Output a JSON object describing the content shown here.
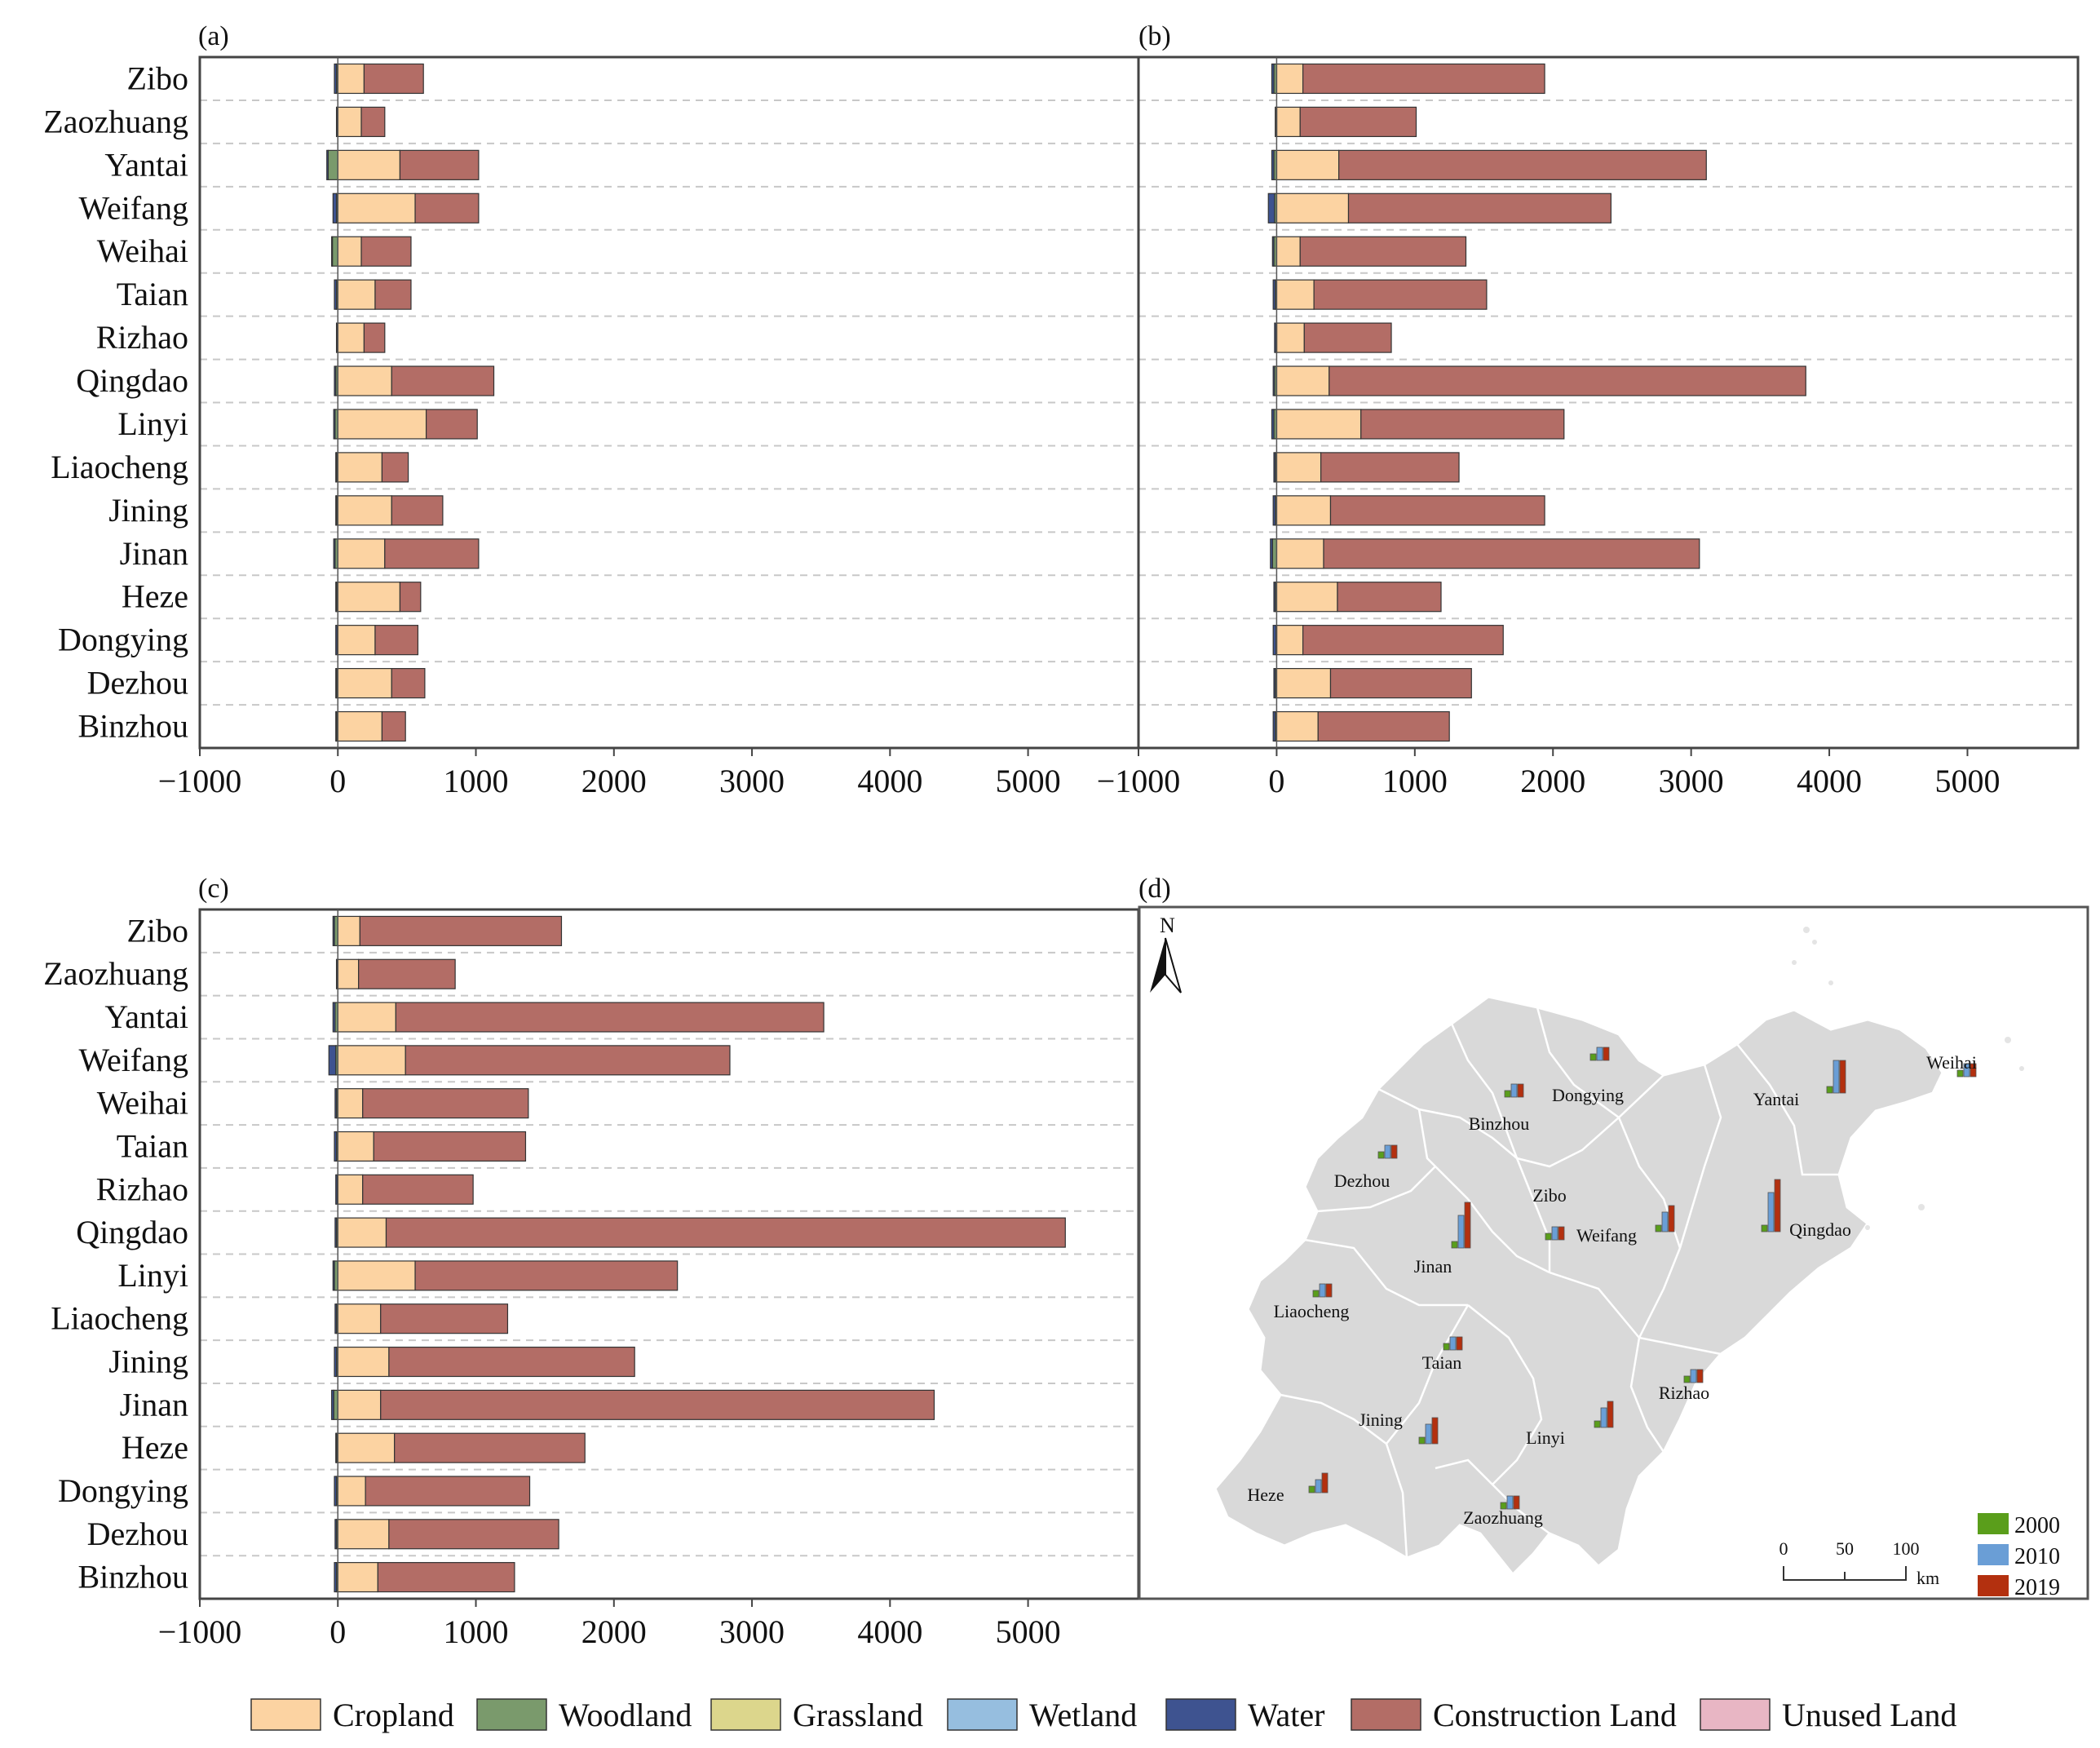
{
  "categories": [
    "Cropland",
    "Woodland",
    "Grassland",
    "Wetland",
    "Water",
    "Construction Land",
    "Unused Land"
  ],
  "colors": {
    "Cropland": "#fcd3a2",
    "Woodland": "#7a9a6c",
    "Grassland": "#dcd68c",
    "Wetland": "#96bedf",
    "Water": "#3e5390",
    "Construction Land": "#b36d66",
    "Unused Land": "#e8b6c4"
  },
  "chart_data": [
    {
      "type": "bar",
      "panel": "(a)",
      "orientation": "horizontal",
      "stacked": true,
      "cities": [
        "Zibo",
        "Zaozhuang",
        "Yantai",
        "Weifang",
        "Weihai",
        "Taian",
        "Rizhao",
        "Qingdao",
        "Linyi",
        "Liaocheng",
        "Jining",
        "Jinan",
        "Heze",
        "Dongying",
        "Dezhou",
        "Binzhou"
      ],
      "xlim": [
        -1000,
        5800
      ],
      "xticks": [
        -1000,
        0,
        1000,
        2000,
        3000,
        4000,
        5000
      ],
      "series": [
        {
          "name": "Cropland",
          "values": [
            190,
            170,
            450,
            560,
            170,
            270,
            190,
            390,
            640,
            320,
            390,
            340,
            450,
            270,
            390,
            320
          ]
        },
        {
          "name": "Construction Land",
          "values": [
            430,
            170,
            570,
            460,
            360,
            260,
            150,
            740,
            370,
            190,
            370,
            680,
            150,
            310,
            240,
            170
          ]
        },
        {
          "name": "Woodland",
          "values": [
            -10,
            -5,
            -70,
            -10,
            -40,
            -10,
            -5,
            -15,
            -20,
            -10,
            -10,
            -20,
            -10,
            -5,
            -10,
            -10
          ]
        },
        {
          "name": "Water",
          "values": [
            -15,
            -5,
            -10,
            -25,
            -5,
            -15,
            -5,
            -10,
            -10,
            -5,
            -5,
            -10,
            -5,
            -10,
            -5,
            -5
          ]
        }
      ]
    },
    {
      "type": "bar",
      "panel": "(b)",
      "orientation": "horizontal",
      "stacked": true,
      "cities": [
        "Zibo",
        "Zaozhuang",
        "Yantai",
        "Weifang",
        "Weihai",
        "Taian",
        "Rizhao",
        "Qingdao",
        "Linyi",
        "Liaocheng",
        "Jining",
        "Jinan",
        "Heze",
        "Dongying",
        "Dezhou",
        "Binzhou"
      ],
      "xlim": [
        -1000,
        5800
      ],
      "xticks": [
        -1000,
        0,
        1000,
        2000,
        3000,
        4000,
        5000
      ],
      "series": [
        {
          "name": "Cropland",
          "values": [
            190,
            170,
            450,
            520,
            170,
            270,
            200,
            380,
            610,
            320,
            390,
            340,
            440,
            190,
            390,
            300
          ]
        },
        {
          "name": "Construction Land",
          "values": [
            1750,
            840,
            2660,
            1900,
            1200,
            1250,
            630,
            3450,
            1470,
            1000,
            1550,
            2720,
            750,
            1450,
            1020,
            950
          ]
        },
        {
          "name": "Woodland",
          "values": [
            -20,
            -5,
            -20,
            -15,
            -20,
            -10,
            -5,
            -15,
            -20,
            -10,
            -10,
            -30,
            -10,
            -5,
            -10,
            -10
          ]
        },
        {
          "name": "Water",
          "values": [
            -15,
            -5,
            -15,
            -45,
            -10,
            -15,
            -10,
            -10,
            -15,
            -10,
            -15,
            -15,
            -10,
            -20,
            -10,
            -15
          ]
        }
      ]
    },
    {
      "type": "bar",
      "panel": "(c)",
      "orientation": "horizontal",
      "stacked": true,
      "cities": [
        "Zibo",
        "Zaozhuang",
        "Yantai",
        "Weifang",
        "Weihai",
        "Taian",
        "Rizhao",
        "Qingdao",
        "Linyi",
        "Liaocheng",
        "Jining",
        "Jinan",
        "Heze",
        "Dongying",
        "Dezhou",
        "Binzhou"
      ],
      "xlim": [
        -1000,
        5800
      ],
      "xticks": [
        -1000,
        0,
        1000,
        2000,
        3000,
        4000,
        5000
      ],
      "series": [
        {
          "name": "Cropland",
          "values": [
            160,
            150,
            420,
            490,
            180,
            260,
            180,
            350,
            560,
            310,
            370,
            310,
            410,
            200,
            370,
            290
          ]
        },
        {
          "name": "Construction Land",
          "values": [
            1460,
            700,
            3100,
            2350,
            1200,
            1100,
            800,
            4920,
            1900,
            920,
            1780,
            4010,
            1380,
            1190,
            1230,
            990
          ]
        },
        {
          "name": "Woodland",
          "values": [
            -25,
            -5,
            -20,
            -15,
            -10,
            -10,
            -5,
            -10,
            -25,
            -10,
            -10,
            -30,
            -10,
            -10,
            -10,
            -10
          ]
        },
        {
          "name": "Water",
          "values": [
            -10,
            -5,
            -15,
            -50,
            -10,
            -15,
            -10,
            -10,
            -10,
            -10,
            -15,
            -15,
            -5,
            -15,
            -10,
            -15
          ]
        }
      ]
    },
    {
      "type": "bar",
      "panel": "(d)",
      "description": "map",
      "north_label": "N",
      "years": [
        "2000",
        "2010",
        "2019"
      ],
      "year_colors": [
        "#5a9e1b",
        "#6a9ed6",
        "#b3300f"
      ],
      "scale_ticks": [
        "0",
        "50",
        "100"
      ],
      "scale_unit": "km",
      "cities": [
        {
          "name": "Weihai",
          "values": [
            1,
            2,
            2
          ]
        },
        {
          "name": "Yantai",
          "values": [
            1,
            5,
            5
          ]
        },
        {
          "name": "Dongying",
          "values": [
            1,
            2,
            2
          ]
        },
        {
          "name": "Binzhou",
          "values": [
            1,
            2,
            2
          ]
        },
        {
          "name": "Dezhou",
          "values": [
            1,
            2,
            2
          ]
        },
        {
          "name": "Zibo",
          "values": [
            1,
            2,
            2
          ]
        },
        {
          "name": "Weifang",
          "values": [
            1,
            3,
            4
          ]
        },
        {
          "name": "Qingdao",
          "values": [
            1,
            6,
            8
          ]
        },
        {
          "name": "Jinan",
          "values": [
            1,
            5,
            7
          ]
        },
        {
          "name": "Liaocheng",
          "values": [
            1,
            2,
            2
          ]
        },
        {
          "name": "Taian",
          "values": [
            1,
            2,
            2
          ]
        },
        {
          "name": "Rizhao",
          "values": [
            1,
            2,
            2
          ]
        },
        {
          "name": "Jining",
          "values": [
            1,
            3,
            4
          ]
        },
        {
          "name": "Linyi",
          "values": [
            1,
            3,
            4
          ]
        },
        {
          "name": "Heze",
          "values": [
            1,
            2,
            3
          ]
        },
        {
          "name": "Zaozhuang",
          "values": [
            1,
            2,
            2
          ]
        }
      ]
    }
  ]
}
